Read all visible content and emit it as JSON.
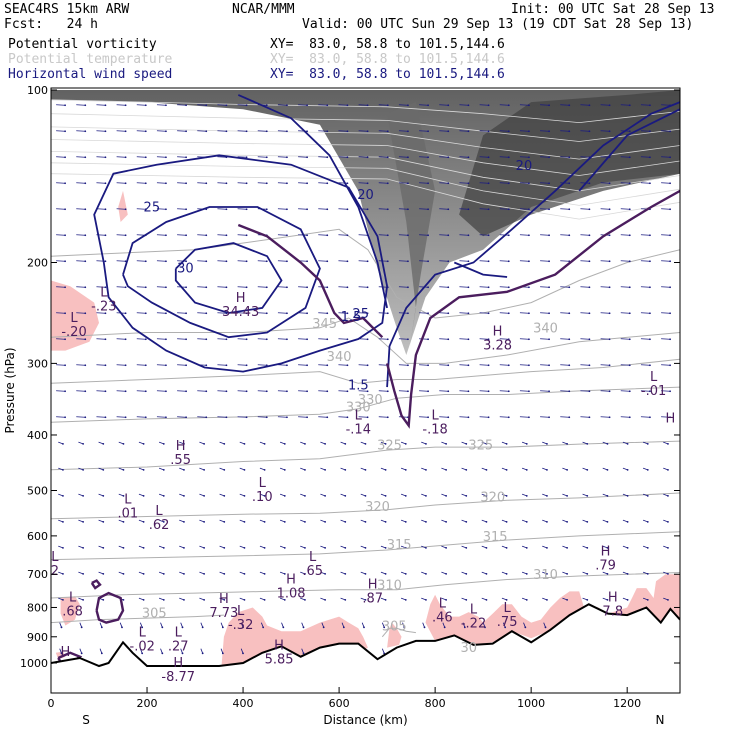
{
  "header": {
    "model": "SEAC4RS 15km ARW",
    "forecast": "Fcst:   24 h",
    "org": "NCAR/MMM",
    "init": "Init: 00 UTC Sat 28 Sep 13",
    "valid": "Valid: 00 UTC Sun 29 Sep 13 (19 CDT Sat 28 Sep 13)"
  },
  "legend": [
    {
      "label": "Potential vorticity",
      "xy": "XY=  83.0, 58.8 to 101.5,144.6",
      "color": "#000000"
    },
    {
      "label": "Potential temperature",
      "xy": "XY=  83.0, 58.8 to 101.5,144.6",
      "color": "#c8c8c8"
    },
    {
      "label": "Horizontal wind speed",
      "xy": "XY=  83.0, 58.8 to 101.5,144.6",
      "color": "#1a1a80"
    }
  ],
  "colors": {
    "pv_positive": "#4b1d5e",
    "pv_negative_fill": "#f8c0c0",
    "theta": "#b0b0b0",
    "wind_speed": "#1a1a80",
    "wind_vectors": "#1a1a80",
    "terrain": "#000000"
  },
  "chart_data": {
    "type": "cross-section",
    "xlabel": "Distance (km)",
    "ylabel": "Pressure (hPa)",
    "x_ticks": [
      "0",
      "200",
      "400",
      "600",
      "800",
      "1000",
      "1200"
    ],
    "y_ticks": [
      "100",
      "200",
      "300",
      "400",
      "500",
      "600",
      "700",
      "800",
      "900",
      "1000"
    ],
    "x_ends": [
      "S",
      "N"
    ],
    "xlim": [
      0,
      1310
    ],
    "ylim": [
      100,
      1050
    ],
    "y_scale": "log-pressure",
    "terrain": [
      [
        0,
        1000
      ],
      [
        30,
        990
      ],
      [
        60,
        980
      ],
      [
        100,
        1012
      ],
      [
        120,
        1000
      ],
      [
        150,
        920
      ],
      [
        170,
        960
      ],
      [
        200,
        1012
      ],
      [
        300,
        1012
      ],
      [
        350,
        1012
      ],
      [
        400,
        1000
      ],
      [
        440,
        960
      ],
      [
        480,
        935
      ],
      [
        520,
        975
      ],
      [
        560,
        940
      ],
      [
        600,
        925
      ],
      [
        640,
        925
      ],
      [
        680,
        985
      ],
      [
        720,
        940
      ],
      [
        760,
        915
      ],
      [
        800,
        915
      ],
      [
        840,
        895
      ],
      [
        880,
        930
      ],
      [
        920,
        925
      ],
      [
        960,
        880
      ],
      [
        1000,
        920
      ],
      [
        1040,
        875
      ],
      [
        1080,
        825
      ],
      [
        1120,
        790
      ],
      [
        1160,
        820
      ],
      [
        1200,
        825
      ],
      [
        1240,
        800
      ],
      [
        1270,
        850
      ],
      [
        1290,
        805
      ],
      [
        1310,
        840
      ]
    ],
    "theta_contours": [
      {
        "value": "345",
        "label_at": [
          570,
          260
        ]
      },
      {
        "value": "340",
        "label_at": [
          1030,
          265
        ]
      },
      {
        "value": "340",
        "label_at": [
          600,
          297
        ]
      },
      {
        "value": "330",
        "label_at": [
          665,
          353
        ]
      },
      {
        "value": "330",
        "label_at": [
          640,
          364
        ]
      },
      {
        "value": "325",
        "label_at": [
          705,
          424
        ]
      },
      {
        "value": "325",
        "label_at": [
          895,
          424
        ]
      },
      {
        "value": "320",
        "label_at": [
          680,
          543
        ]
      },
      {
        "value": "320",
        "label_at": [
          920,
          523
        ]
      },
      {
        "value": "315",
        "label_at": [
          725,
          633
        ]
      },
      {
        "value": "315",
        "label_at": [
          925,
          612
        ]
      },
      {
        "value": "310",
        "label_at": [
          705,
          745
        ]
      },
      {
        "value": "310",
        "label_at": [
          1030,
          714
        ]
      },
      {
        "value": "305",
        "label_at": [
          215,
          833
        ]
      },
      {
        "value": "305",
        "label_at": [
          715,
          878
        ]
      },
      {
        "value": "30",
        "label_at": [
          870,
          957
        ]
      }
    ],
    "wind_speed_contours": [
      {
        "value": "25",
        "label_at": [
          210,
          163
        ]
      },
      {
        "value": "30",
        "label_at": [
          280,
          208
        ]
      },
      {
        "value": "20",
        "label_at": [
          655,
          155
        ]
      },
      {
        "value": "25",
        "label_at": [
          645,
          250
        ]
      },
      {
        "value": "1.5",
        "label_at": [
          625,
          253
        ]
      },
      {
        "value": "1.5",
        "label_at": [
          640,
          333
        ]
      },
      {
        "value": "20",
        "label_at": [
          985,
          138
        ]
      }
    ],
    "extrema": [
      {
        "kind": "L",
        "value": "-.23",
        "x": 110,
        "p": 235
      },
      {
        "kind": "L",
        "value": "-.20",
        "x": 48,
        "p": 260
      },
      {
        "kind": "H",
        "value": "34.43",
        "x": 395,
        "p": 240
      },
      {
        "kind": "H",
        "value": "3.28",
        "x": 930,
        "p": 275
      },
      {
        "kind": "L",
        "value": "-.01",
        "x": 1255,
        "p": 330
      },
      {
        "kind": "L",
        "value": "-.14",
        "x": 640,
        "p": 385
      },
      {
        "kind": "L",
        "value": "-.18",
        "x": 800,
        "p": 385
      },
      {
        "kind": "H",
        "value": ".55",
        "x": 270,
        "p": 435
      },
      {
        "kind": "L",
        "value": ".10",
        "x": 440,
        "p": 505
      },
      {
        "kind": "L",
        "value": ".01",
        "x": 160,
        "p": 540
      },
      {
        "kind": "L",
        "value": ".62",
        "x": 225,
        "p": 565
      },
      {
        "kind": "L",
        "value": ".65",
        "x": 545,
        "p": 680
      },
      {
        "kind": "H",
        "value": ".79",
        "x": 1155,
        "p": 665
      },
      {
        "kind": "H",
        "value": "1.08",
        "x": 500,
        "p": 745
      },
      {
        "kind": "H",
        "value": ".87",
        "x": 670,
        "p": 760
      },
      {
        "kind": "L",
        "value": ".68",
        "x": 45,
        "p": 800
      },
      {
        "kind": "H",
        "value": "7.73",
        "x": 360,
        "p": 805
      },
      {
        "kind": "L",
        "value": "-.32",
        "x": 395,
        "p": 845
      },
      {
        "kind": "L",
        "value": ".46",
        "x": 815,
        "p": 820
      },
      {
        "kind": "L",
        "value": "-.22",
        "x": 880,
        "p": 840
      },
      {
        "kind": "L",
        "value": ".75",
        "x": 950,
        "p": 835
      },
      {
        "kind": "H",
        "value": "7.8",
        "x": 1170,
        "p": 800
      },
      {
        "kind": "L",
        "value": "-.02",
        "x": 190,
        "p": 920
      },
      {
        "kind": "L",
        "value": ".27",
        "x": 265,
        "p": 920
      },
      {
        "kind": "H",
        "value": "5.85",
        "x": 475,
        "p": 970
      },
      {
        "kind": "H",
        "value": "-8.77",
        "x": 265,
        "p": 1040
      },
      {
        "kind": "H",
        "value": "",
        "x": 30,
        "p": 995
      },
      {
        "kind": "H",
        "value": "",
        "x": 1290,
        "p": 390
      },
      {
        "kind": "L",
        "value": "2",
        "x": 8,
        "p": 680
      }
    ]
  }
}
